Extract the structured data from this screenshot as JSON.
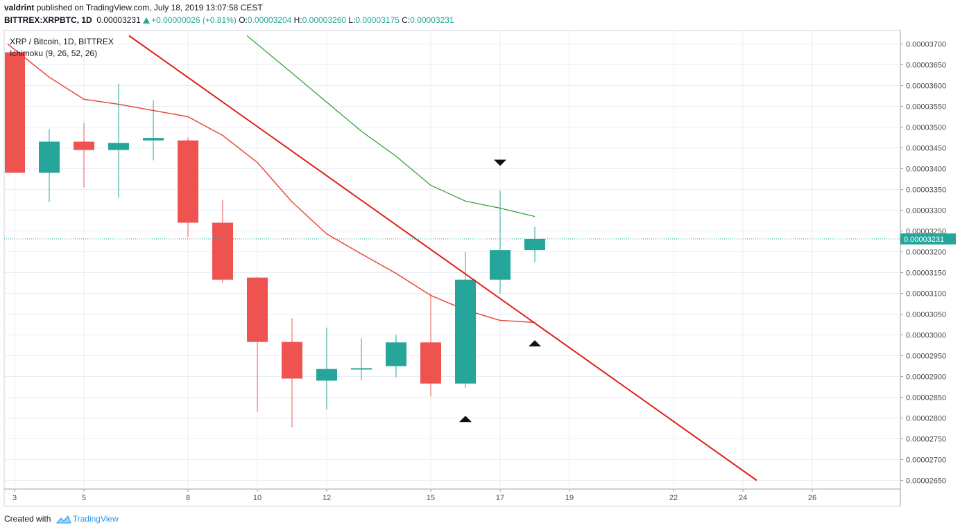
{
  "header": {
    "author": "valdrint",
    "published_text": "published on TradingView.com, July 18, 2019 13:07:58 CEST",
    "symbol": "BITTREX:XRPBTC, 1D",
    "last": "0.00003231",
    "change": "+0.00000026 (+0.81%)",
    "o_label": "O:",
    "o": "0.00003204",
    "h_label": "H:",
    "h": "0.00003260",
    "l_label": "L:",
    "l": "0.00003175",
    "c_label": "C:",
    "c": "0.00003231"
  },
  "legend": {
    "title": "XRP / Bitcoin, 1D, BITTREX",
    "indicator": "Ichimoku (9, 26, 52, 26)"
  },
  "footer": {
    "created_with": "Created with",
    "brand": "TradingView"
  },
  "colors": {
    "up": "#26a69a",
    "down": "#ef5350",
    "grid": "#e8eef5",
    "trendline": "#e01f12",
    "kijun": "#e84a3a",
    "green_line": "#2e9c2e",
    "price_tag": "#26a69a"
  },
  "chart_data": {
    "type": "candlestick",
    "y_min": 2.64e-05,
    "y_max": 3.72e-05,
    "y_ticks": [
      "0.00003700",
      "0.00003650",
      "0.00003600",
      "0.00003550",
      "0.00003500",
      "0.00003450",
      "0.00003400",
      "0.00003350",
      "0.00003300",
      "0.00003250",
      "0.00003200",
      "0.00003150",
      "0.00003100",
      "0.00003050",
      "0.00003000",
      "0.00002950",
      "0.00002900",
      "0.00002850",
      "0.00002800",
      "0.00002750",
      "0.00002700",
      "0.00002650"
    ],
    "x_ticks": [
      {
        "day": 3,
        "label": "3"
      },
      {
        "day": 5,
        "label": "5"
      },
      {
        "day": 8,
        "label": "8"
      },
      {
        "day": 10,
        "label": "10"
      },
      {
        "day": 12,
        "label": "12"
      },
      {
        "day": 15,
        "label": "15"
      },
      {
        "day": 17,
        "label": "17"
      },
      {
        "day": 19,
        "label": "19"
      },
      {
        "day": 22,
        "label": "22"
      },
      {
        "day": 24,
        "label": "24"
      },
      {
        "day": 26,
        "label": "26"
      }
    ],
    "candles": [
      {
        "day": 3,
        "o": 3.68e-05,
        "h": 3.68e-05,
        "l": 3.39e-05,
        "c": 3.39e-05
      },
      {
        "day": 4,
        "o": 3.39e-05,
        "h": 3.495e-05,
        "l": 3.32e-05,
        "c": 3.465e-05
      },
      {
        "day": 5,
        "o": 3.465e-05,
        "h": 3.51e-05,
        "l": 3.355e-05,
        "c": 3.445e-05
      },
      {
        "day": 6,
        "o": 3.445e-05,
        "h": 3.605e-05,
        "l": 3.33e-05,
        "c": 3.462e-05
      },
      {
        "day": 7,
        "o": 3.468e-05,
        "h": 3.565e-05,
        "l": 3.42e-05,
        "c": 3.474e-05
      },
      {
        "day": 8,
        "o": 3.468e-05,
        "h": 3.475e-05,
        "l": 3.235e-05,
        "c": 3.27e-05
      },
      {
        "day": 9,
        "o": 3.27e-05,
        "h": 3.325e-05,
        "l": 3.125e-05,
        "c": 3.133e-05
      },
      {
        "day": 10,
        "o": 3.138e-05,
        "h": 3.14e-05,
        "l": 2.815e-05,
        "c": 2.983e-05
      },
      {
        "day": 11,
        "o": 2.983e-05,
        "h": 3.04e-05,
        "l": 2.778e-05,
        "c": 2.895e-05
      },
      {
        "day": 12,
        "o": 2.89e-05,
        "h": 3.018e-05,
        "l": 2.82e-05,
        "c": 2.918e-05
      },
      {
        "day": 13,
        "o": 2.918e-05,
        "h": 2.992e-05,
        "l": 2.89e-05,
        "c": 2.92e-05
      },
      {
        "day": 14,
        "o": 2.925e-05,
        "h": 3e-05,
        "l": 2.898e-05,
        "c": 2.982e-05
      },
      {
        "day": 15,
        "o": 2.982e-05,
        "h": 3.1e-05,
        "l": 2.852e-05,
        "c": 2.883e-05
      },
      {
        "day": 16,
        "o": 2.883e-05,
        "h": 3.2e-05,
        "l": 2.873e-05,
        "c": 3.133e-05
      },
      {
        "day": 17,
        "o": 3.133e-05,
        "h": 3.347e-05,
        "l": 3.1e-05,
        "c": 3.204e-05
      },
      {
        "day": 18,
        "o": 3.204e-05,
        "h": 3.26e-05,
        "l": 3.175e-05,
        "c": 3.231e-05
      }
    ],
    "kijun_line": [
      {
        "day": 2.8,
        "y": 3.7e-05
      },
      {
        "day": 4,
        "y": 3.62e-05
      },
      {
        "day": 5,
        "y": 3.567e-05
      },
      {
        "day": 6,
        "y": 3.555e-05
      },
      {
        "day": 7,
        "y": 3.54e-05
      },
      {
        "day": 8,
        "y": 3.525e-05
      },
      {
        "day": 9,
        "y": 3.48e-05
      },
      {
        "day": 10,
        "y": 3.415e-05
      },
      {
        "day": 11,
        "y": 3.32e-05
      },
      {
        "day": 12,
        "y": 3.243e-05
      },
      {
        "day": 13,
        "y": 3.195e-05
      },
      {
        "day": 14,
        "y": 3.148e-05
      },
      {
        "day": 15,
        "y": 3.095e-05
      },
      {
        "day": 16,
        "y": 3.06e-05
      },
      {
        "day": 17,
        "y": 3.035e-05
      },
      {
        "day": 18,
        "y": 3.03e-05
      }
    ],
    "green_line": [
      {
        "day": 9.7,
        "y": 3.72e-05
      },
      {
        "day": 11,
        "y": 3.63e-05
      },
      {
        "day": 12,
        "y": 3.56e-05
      },
      {
        "day": 13,
        "y": 3.49e-05
      },
      {
        "day": 14,
        "y": 3.43e-05
      },
      {
        "day": 15,
        "y": 3.36e-05
      },
      {
        "day": 16,
        "y": 3.322e-05
      },
      {
        "day": 17,
        "y": 3.305e-05
      },
      {
        "day": 18,
        "y": 3.285e-05
      }
    ],
    "trendline": [
      {
        "day": 6.3,
        "y": 3.72e-05
      },
      {
        "day": 24.4,
        "y": 2.65e-05
      }
    ],
    "price_line": 3.231e-05,
    "price_label": "0.00003231",
    "markers": [
      {
        "day": 17,
        "y": 3.415e-05,
        "dir": "down"
      },
      {
        "day": 16,
        "y": 2.797e-05,
        "dir": "up"
      },
      {
        "day": 18,
        "y": 2.979e-05,
        "dir": "up"
      }
    ]
  }
}
